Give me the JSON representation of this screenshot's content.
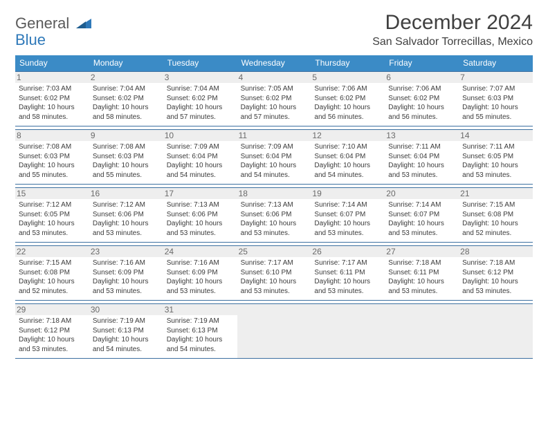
{
  "colors": {
    "header_bg": "#3b8bc6",
    "rule": "#3b6fa0",
    "daynum_bg": "#eeeeee",
    "text": "#3a3a3a",
    "logo_gray": "#5a5a5a",
    "logo_blue": "#2f79b9"
  },
  "fonts": {
    "family": "Arial",
    "title_size_pt": 22,
    "location_size_pt": 12,
    "dow_size_pt": 9,
    "daynum_size_pt": 9,
    "body_size_pt": 7.5
  },
  "logo": {
    "word1": "General",
    "word2": "Blue"
  },
  "title": {
    "month": "December 2024",
    "location": "San Salvador Torrecillas, Mexico"
  },
  "days_of_week": [
    "Sunday",
    "Monday",
    "Tuesday",
    "Wednesday",
    "Thursday",
    "Friday",
    "Saturday"
  ],
  "weeks": [
    [
      {
        "n": "1",
        "sr": "Sunrise: 7:03 AM",
        "ss": "Sunset: 6:02 PM",
        "d1": "Daylight: 10 hours",
        "d2": "and 58 minutes."
      },
      {
        "n": "2",
        "sr": "Sunrise: 7:04 AM",
        "ss": "Sunset: 6:02 PM",
        "d1": "Daylight: 10 hours",
        "d2": "and 58 minutes."
      },
      {
        "n": "3",
        "sr": "Sunrise: 7:04 AM",
        "ss": "Sunset: 6:02 PM",
        "d1": "Daylight: 10 hours",
        "d2": "and 57 minutes."
      },
      {
        "n": "4",
        "sr": "Sunrise: 7:05 AM",
        "ss": "Sunset: 6:02 PM",
        "d1": "Daylight: 10 hours",
        "d2": "and 57 minutes."
      },
      {
        "n": "5",
        "sr": "Sunrise: 7:06 AM",
        "ss": "Sunset: 6:02 PM",
        "d1": "Daylight: 10 hours",
        "d2": "and 56 minutes."
      },
      {
        "n": "6",
        "sr": "Sunrise: 7:06 AM",
        "ss": "Sunset: 6:02 PM",
        "d1": "Daylight: 10 hours",
        "d2": "and 56 minutes."
      },
      {
        "n": "7",
        "sr": "Sunrise: 7:07 AM",
        "ss": "Sunset: 6:03 PM",
        "d1": "Daylight: 10 hours",
        "d2": "and 55 minutes."
      }
    ],
    [
      {
        "n": "8",
        "sr": "Sunrise: 7:08 AM",
        "ss": "Sunset: 6:03 PM",
        "d1": "Daylight: 10 hours",
        "d2": "and 55 minutes."
      },
      {
        "n": "9",
        "sr": "Sunrise: 7:08 AM",
        "ss": "Sunset: 6:03 PM",
        "d1": "Daylight: 10 hours",
        "d2": "and 55 minutes."
      },
      {
        "n": "10",
        "sr": "Sunrise: 7:09 AM",
        "ss": "Sunset: 6:04 PM",
        "d1": "Daylight: 10 hours",
        "d2": "and 54 minutes."
      },
      {
        "n": "11",
        "sr": "Sunrise: 7:09 AM",
        "ss": "Sunset: 6:04 PM",
        "d1": "Daylight: 10 hours",
        "d2": "and 54 minutes."
      },
      {
        "n": "12",
        "sr": "Sunrise: 7:10 AM",
        "ss": "Sunset: 6:04 PM",
        "d1": "Daylight: 10 hours",
        "d2": "and 54 minutes."
      },
      {
        "n": "13",
        "sr": "Sunrise: 7:11 AM",
        "ss": "Sunset: 6:04 PM",
        "d1": "Daylight: 10 hours",
        "d2": "and 53 minutes."
      },
      {
        "n": "14",
        "sr": "Sunrise: 7:11 AM",
        "ss": "Sunset: 6:05 PM",
        "d1": "Daylight: 10 hours",
        "d2": "and 53 minutes."
      }
    ],
    [
      {
        "n": "15",
        "sr": "Sunrise: 7:12 AM",
        "ss": "Sunset: 6:05 PM",
        "d1": "Daylight: 10 hours",
        "d2": "and 53 minutes."
      },
      {
        "n": "16",
        "sr": "Sunrise: 7:12 AM",
        "ss": "Sunset: 6:06 PM",
        "d1": "Daylight: 10 hours",
        "d2": "and 53 minutes."
      },
      {
        "n": "17",
        "sr": "Sunrise: 7:13 AM",
        "ss": "Sunset: 6:06 PM",
        "d1": "Daylight: 10 hours",
        "d2": "and 53 minutes."
      },
      {
        "n": "18",
        "sr": "Sunrise: 7:13 AM",
        "ss": "Sunset: 6:06 PM",
        "d1": "Daylight: 10 hours",
        "d2": "and 53 minutes."
      },
      {
        "n": "19",
        "sr": "Sunrise: 7:14 AM",
        "ss": "Sunset: 6:07 PM",
        "d1": "Daylight: 10 hours",
        "d2": "and 53 minutes."
      },
      {
        "n": "20",
        "sr": "Sunrise: 7:14 AM",
        "ss": "Sunset: 6:07 PM",
        "d1": "Daylight: 10 hours",
        "d2": "and 53 minutes."
      },
      {
        "n": "21",
        "sr": "Sunrise: 7:15 AM",
        "ss": "Sunset: 6:08 PM",
        "d1": "Daylight: 10 hours",
        "d2": "and 52 minutes."
      }
    ],
    [
      {
        "n": "22",
        "sr": "Sunrise: 7:15 AM",
        "ss": "Sunset: 6:08 PM",
        "d1": "Daylight: 10 hours",
        "d2": "and 52 minutes."
      },
      {
        "n": "23",
        "sr": "Sunrise: 7:16 AM",
        "ss": "Sunset: 6:09 PM",
        "d1": "Daylight: 10 hours",
        "d2": "and 53 minutes."
      },
      {
        "n": "24",
        "sr": "Sunrise: 7:16 AM",
        "ss": "Sunset: 6:09 PM",
        "d1": "Daylight: 10 hours",
        "d2": "and 53 minutes."
      },
      {
        "n": "25",
        "sr": "Sunrise: 7:17 AM",
        "ss": "Sunset: 6:10 PM",
        "d1": "Daylight: 10 hours",
        "d2": "and 53 minutes."
      },
      {
        "n": "26",
        "sr": "Sunrise: 7:17 AM",
        "ss": "Sunset: 6:11 PM",
        "d1": "Daylight: 10 hours",
        "d2": "and 53 minutes."
      },
      {
        "n": "27",
        "sr": "Sunrise: 7:18 AM",
        "ss": "Sunset: 6:11 PM",
        "d1": "Daylight: 10 hours",
        "d2": "and 53 minutes."
      },
      {
        "n": "28",
        "sr": "Sunrise: 7:18 AM",
        "ss": "Sunset: 6:12 PM",
        "d1": "Daylight: 10 hours",
        "d2": "and 53 minutes."
      }
    ],
    [
      {
        "n": "29",
        "sr": "Sunrise: 7:18 AM",
        "ss": "Sunset: 6:12 PM",
        "d1": "Daylight: 10 hours",
        "d2": "and 53 minutes."
      },
      {
        "n": "30",
        "sr": "Sunrise: 7:19 AM",
        "ss": "Sunset: 6:13 PM",
        "d1": "Daylight: 10 hours",
        "d2": "and 54 minutes."
      },
      {
        "n": "31",
        "sr": "Sunrise: 7:19 AM",
        "ss": "Sunset: 6:13 PM",
        "d1": "Daylight: 10 hours",
        "d2": "and 54 minutes."
      },
      {
        "empty": true
      },
      {
        "empty": true
      },
      {
        "empty": true
      },
      {
        "empty": true
      }
    ]
  ]
}
